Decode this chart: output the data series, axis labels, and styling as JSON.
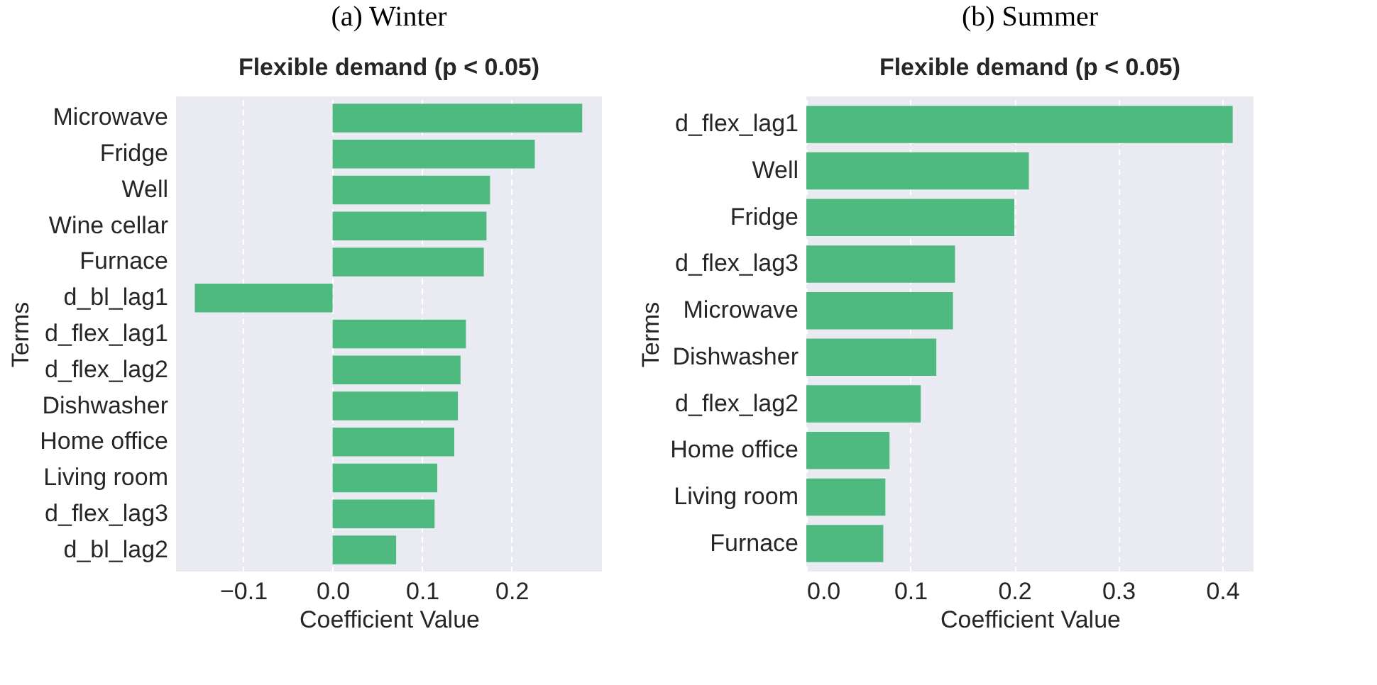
{
  "chart_data": [
    {
      "type": "bar",
      "orientation": "horizontal",
      "title": "(a) Winter",
      "subtitle": "Flexible demand (p < 0.05)",
      "xlabel": "Coefficient Value",
      "ylabel": "Terms",
      "categories": [
        "Microwave",
        "Fridge",
        "Well",
        "Wine cellar",
        "Furnace",
        "d_bl_lag1",
        "d_flex_lag1",
        "d_flex_lag2",
        "Dishwasher",
        "Home office",
        "Living room",
        "d_flex_lag3",
        "d_bl_lag2"
      ],
      "values": [
        0.279,
        0.226,
        0.176,
        0.172,
        0.169,
        -0.154,
        0.149,
        0.143,
        0.14,
        0.136,
        0.117,
        0.114,
        0.071
      ],
      "color": "#4fba7f",
      "xlim": [
        -0.175,
        0.301
      ],
      "xticks": [
        {
          "value": -0.1,
          "label": "−0.1"
        },
        {
          "value": 0,
          "label": "0.0"
        },
        {
          "value": 0.1,
          "label": "0.1"
        },
        {
          "value": 0.2,
          "label": "0.2"
        }
      ],
      "grid": "x"
    },
    {
      "type": "bar",
      "orientation": "horizontal",
      "title": "(b) Summer",
      "subtitle": "Flexible demand (p < 0.05)",
      "xlabel": "Coefficient Value",
      "ylabel": "Terms",
      "categories": [
        "d_flex_lag1",
        "Well",
        "Fridge",
        "d_flex_lag3",
        "Microwave",
        "Dishwasher",
        "d_flex_lag2",
        "Home office",
        "Living room",
        "Furnace"
      ],
      "values": [
        0.41,
        0.214,
        0.2,
        0.143,
        0.141,
        0.125,
        0.11,
        0.08,
        0.076,
        0.074
      ],
      "color": "#4fba7f",
      "xlim": [
        0,
        0.43
      ],
      "xticks": [
        {
          "value": 0,
          "label": "0.0"
        },
        {
          "value": 0.1,
          "label": "0.1"
        },
        {
          "value": 0.2,
          "label": "0.2"
        },
        {
          "value": 0.3,
          "label": "0.3"
        },
        {
          "value": 0.4,
          "label": "0.4"
        }
      ],
      "grid": "x"
    }
  ]
}
